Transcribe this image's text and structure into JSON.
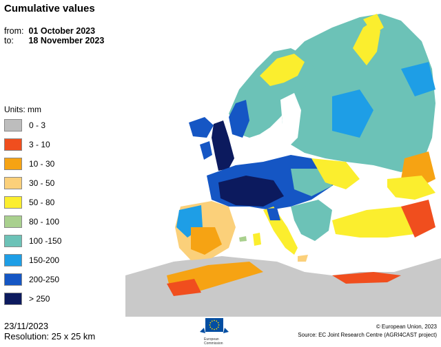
{
  "title": "Cumulative values",
  "period": {
    "from_label": "from:",
    "from_value": "01 October 2023",
    "to_label": "to:",
    "to_value": "18 November 2023"
  },
  "legend": {
    "units": "Units: mm",
    "items": [
      {
        "label": "0 - 3",
        "color": "#bdbdbd"
      },
      {
        "label": "3 - 10",
        "color": "#f04e1e"
      },
      {
        "label": "10 - 30",
        "color": "#f6a313"
      },
      {
        "label": "30 - 50",
        "color": "#fbd07a"
      },
      {
        "label": "50 - 80",
        "color": "#fbee2e"
      },
      {
        "label": "80 - 100",
        "color": "#a9d08e"
      },
      {
        "label": "100 -150",
        "color": "#6cc2b7"
      },
      {
        "label": "150-200",
        "color": "#1e9ee6"
      },
      {
        "label": "200-250",
        "color": "#1556c4"
      },
      {
        "label": "> 250",
        "color": "#0c1a5e"
      }
    ]
  },
  "footer": {
    "date": "23/11/2023",
    "resolution": "Resolution: 25 x 25 km",
    "logo_text_1": "European",
    "logo_text_2": "Commission",
    "copyright": "© European Union, 2023",
    "source": "Source: EC Joint Research Centre (AGRI4CAST project)"
  }
}
